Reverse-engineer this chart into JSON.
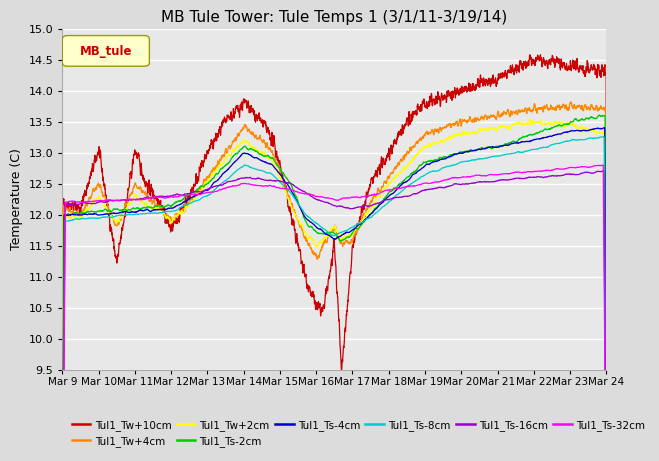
{
  "title": "MB Tule Tower: Tule Temps 1 (3/1/11-3/19/14)",
  "ylabel": "Temperature (C)",
  "ylim": [
    9.5,
    15.0
  ],
  "yticks": [
    9.5,
    10.0,
    10.5,
    11.0,
    11.5,
    12.0,
    12.5,
    13.0,
    13.5,
    14.0,
    14.5,
    15.0
  ],
  "xtick_labels": [
    "Mar 9",
    "Mar 10",
    "Mar 11",
    "Mar 12",
    "Mar 13",
    "Mar 14",
    "Mar 15",
    "Mar 16",
    "Mar 17",
    "Mar 18",
    "Mar 19",
    "Mar 20",
    "Mar 21",
    "Mar 22",
    "Mar 23",
    "Mar 24"
  ],
  "legend_label": "MB_tule",
  "series_names": [
    "Tul1_Tw+10cm",
    "Tul1_Tw+4cm",
    "Tul1_Tw+2cm",
    "Tul1_Ts-2cm",
    "Tul1_Ts-4cm",
    "Tul1_Ts-8cm",
    "Tul1_Ts-16cm",
    "Tul1_Ts-32cm"
  ],
  "series_colors": [
    "#cc0000",
    "#ff8800",
    "#ffff00",
    "#00cc00",
    "#0000cc",
    "#00cccc",
    "#9900cc",
    "#ff00ff"
  ],
  "background_color": "#dcdcdc",
  "plot_bg_color": "#e8e8e8",
  "grid_color": "#ffffff"
}
